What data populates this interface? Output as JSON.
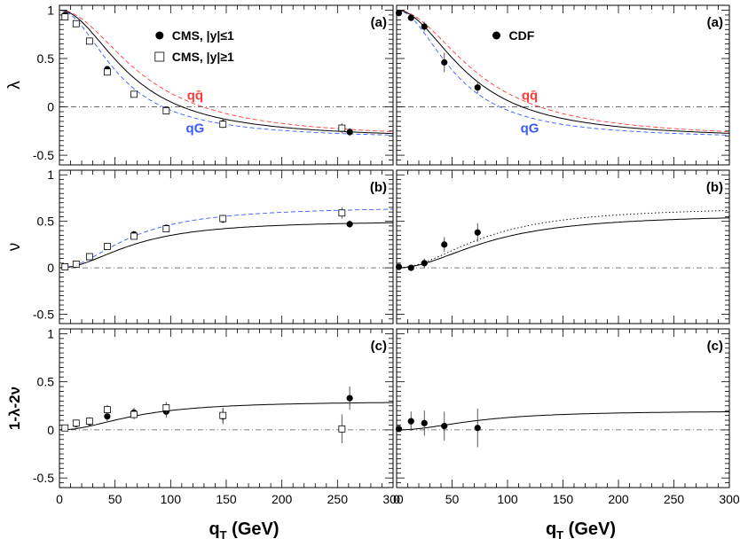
{
  "figure": {
    "x_axis_label": "q",
    "x_axis_subscript": "T",
    "x_axis_unit": "(GeV)",
    "row_ylabels": [
      "λ",
      "ν",
      "1-λ-2ν"
    ],
    "x_ticks": [
      0,
      50,
      100,
      150,
      200,
      250,
      300
    ],
    "y_ticks": [
      1,
      0.5,
      0,
      -0.5
    ],
    "y_tick_labels": [
      "1",
      "0.5",
      "0",
      "-0.5"
    ],
    "colors": {
      "qqbar": "#ff3b3b",
      "qG": "#3b5bff",
      "data": "#000000",
      "reference": "#555555"
    }
  },
  "chart_data": [
    {
      "type": "scatter",
      "panel": "lambda-cms",
      "tag": "(a)",
      "xlim": [
        0,
        300
      ],
      "ylim": [
        -0.6,
        1.05
      ],
      "legend": [
        {
          "marker": "filled-circle",
          "label": "CMS, |y|≤1"
        },
        {
          "marker": "open-square",
          "label": "CMS, |y|≥1"
        }
      ],
      "annotations": [
        {
          "text": "qq̄",
          "color": "#ff3b3b",
          "x": 122,
          "y": 0.12
        },
        {
          "text": "qG",
          "color": "#3b5bff",
          "x": 122,
          "y": -0.22
        }
      ],
      "series": [
        {
          "name": "CMS, |y|≤1",
          "marker": "filled-circle",
          "x": [
            5,
            15,
            27,
            43,
            67,
            96,
            147,
            261
          ],
          "y": [
            0.95,
            0.86,
            0.68,
            0.39,
            0.13,
            -0.03,
            -0.17,
            -0.26
          ],
          "err": [
            0.03,
            0.03,
            0.03,
            0.03,
            0.03,
            0.03,
            0.04,
            0.04
          ]
        },
        {
          "name": "CMS, |y|≥1",
          "marker": "open-square",
          "x": [
            5,
            15,
            27,
            43,
            67,
            96,
            147,
            254
          ],
          "y": [
            0.93,
            0.86,
            0.68,
            0.36,
            0.13,
            -0.04,
            -0.18,
            -0.22
          ],
          "err": [
            0.03,
            0.03,
            0.03,
            0.03,
            0.03,
            0.03,
            0.04,
            0.05
          ]
        }
      ],
      "curves": [
        {
          "kind": "qqbar",
          "style": "dashed",
          "color": "#ff3b3b",
          "fn": "lambda",
          "Q": 91.19
        },
        {
          "kind": "qG",
          "style": "dashed",
          "color": "#3b5bff",
          "fn": "lambda",
          "Q": 65.8
        },
        {
          "kind": "fit",
          "style": "solid",
          "color": "#000000",
          "fn": "lambda",
          "Q": 78
        }
      ]
    },
    {
      "type": "scatter",
      "panel": "lambda-cdf",
      "tag": "(a)",
      "xlim": [
        0,
        300
      ],
      "ylim": [
        -0.6,
        1.05
      ],
      "legend": [
        {
          "marker": "filled-circle",
          "label": "CDF"
        }
      ],
      "annotations": [
        {
          "text": "qq̄",
          "color": "#ff3b3b",
          "x": 120,
          "y": 0.12
        },
        {
          "text": "qG",
          "color": "#3b5bff",
          "x": 120,
          "y": -0.22
        }
      ],
      "series": [
        {
          "name": "CDF",
          "marker": "filled-circle",
          "x": [
            2,
            13,
            25,
            43,
            73
          ],
          "y": [
            0.97,
            0.92,
            0.83,
            0.46,
            0.2
          ],
          "err": [
            0.02,
            0.03,
            0.05,
            0.1,
            0.06
          ]
        }
      ],
      "curves": [
        {
          "kind": "qqbar",
          "style": "dashed",
          "color": "#ff3b3b",
          "fn": "lambda",
          "Q": 91.19
        },
        {
          "kind": "qG",
          "style": "dashed",
          "color": "#3b5bff",
          "fn": "lambda",
          "Q": 65.8
        },
        {
          "kind": "fit",
          "style": "solid",
          "color": "#000000",
          "fn": "lambda",
          "Q": 80
        }
      ]
    },
    {
      "type": "scatter",
      "panel": "nu-cms",
      "tag": "(b)",
      "xlim": [
        0,
        300
      ],
      "ylim": [
        -0.6,
        1.05
      ],
      "series": [
        {
          "name": "CMS, |y|≤1",
          "marker": "filled-circle",
          "x": [
            5,
            15,
            27,
            43,
            67,
            96,
            147,
            261
          ],
          "y": [
            0.01,
            0.04,
            0.12,
            0.23,
            0.36,
            0.43,
            0.52,
            0.47
          ],
          "err": [
            0.02,
            0.02,
            0.03,
            0.03,
            0.03,
            0.03,
            0.04,
            0.04
          ]
        },
        {
          "name": "CMS, |y|≥1",
          "marker": "open-square",
          "x": [
            5,
            15,
            27,
            43,
            67,
            96,
            147,
            254
          ],
          "y": [
            0.01,
            0.04,
            0.12,
            0.23,
            0.34,
            0.42,
            0.53,
            0.59
          ],
          "err": [
            0.02,
            0.02,
            0.03,
            0.03,
            0.03,
            0.03,
            0.04,
            0.06
          ]
        }
      ],
      "curves": [
        {
          "kind": "qG",
          "style": "dashed",
          "color": "#3b5bff",
          "fn": "nu",
          "a": 0.66,
          "Q": 65
        },
        {
          "kind": "fit",
          "style": "solid",
          "color": "#000000",
          "fn": "nu",
          "a": 0.51,
          "Q": 68
        }
      ]
    },
    {
      "type": "scatter",
      "panel": "nu-cdf",
      "tag": "(b)",
      "xlim": [
        0,
        300
      ],
      "ylim": [
        -0.6,
        1.05
      ],
      "series": [
        {
          "name": "CDF",
          "marker": "filled-circle",
          "x": [
            2,
            13,
            25,
            43,
            73
          ],
          "y": [
            0.01,
            0.0,
            0.05,
            0.25,
            0.38
          ],
          "err": [
            0.02,
            0.03,
            0.05,
            0.08,
            0.1
          ]
        }
      ],
      "curves": [
        {
          "kind": "alt",
          "style": "dotted",
          "color": "#000000",
          "fn": "nu",
          "a": 0.66,
          "Q": 80
        },
        {
          "kind": "fit",
          "style": "solid",
          "color": "#000000",
          "fn": "nu",
          "a": 0.58,
          "Q": 85
        }
      ]
    },
    {
      "type": "scatter",
      "panel": "lt-cms",
      "tag": "(c)",
      "xlim": [
        0,
        300
      ],
      "ylim": [
        -0.6,
        1.05
      ],
      "series": [
        {
          "name": "CMS, |y|≤1",
          "marker": "filled-circle",
          "x": [
            5,
            15,
            27,
            43,
            67,
            96,
            147,
            261
          ],
          "y": [
            0.02,
            0.06,
            0.08,
            0.14,
            0.18,
            0.19,
            0.14,
            0.33
          ],
          "err": [
            0.03,
            0.03,
            0.04,
            0.05,
            0.05,
            0.06,
            0.08,
            0.12
          ]
        },
        {
          "name": "CMS, |y|≥1",
          "marker": "open-square",
          "x": [
            5,
            15,
            27,
            43,
            67,
            96,
            147,
            254
          ],
          "y": [
            0.02,
            0.07,
            0.09,
            0.21,
            0.16,
            0.23,
            0.15,
            0.01
          ],
          "err": [
            0.03,
            0.03,
            0.04,
            0.05,
            0.05,
            0.06,
            0.08,
            0.15
          ]
        }
      ],
      "curves": [
        {
          "kind": "fit",
          "style": "solid",
          "color": "#000000",
          "fn": "nu",
          "a": 0.3,
          "Q": 70
        }
      ]
    },
    {
      "type": "scatter",
      "panel": "lt-cdf",
      "tag": "(c)",
      "xlim": [
        0,
        300
      ],
      "ylim": [
        -0.6,
        1.05
      ],
      "series": [
        {
          "name": "CDF",
          "marker": "filled-circle",
          "x": [
            2,
            13,
            25,
            43,
            73
          ],
          "y": [
            0.01,
            0.09,
            0.07,
            0.04,
            0.02
          ],
          "err": [
            0.03,
            0.1,
            0.13,
            0.15,
            0.2
          ]
        }
      ],
      "curves": [
        {
          "kind": "fit",
          "style": "solid",
          "color": "#000000",
          "fn": "nu",
          "a": 0.2,
          "Q": 75
        }
      ]
    }
  ]
}
